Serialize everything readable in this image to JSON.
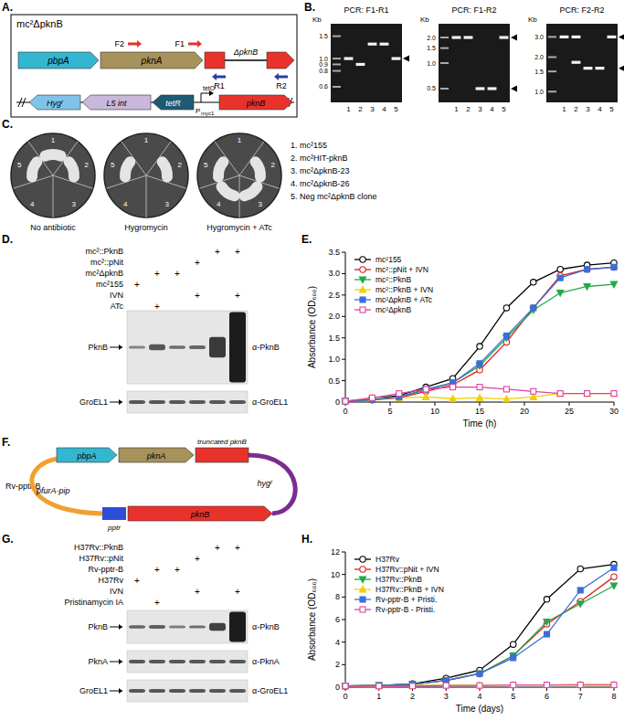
{
  "panel_labels": [
    "A.",
    "B.",
    "C.",
    "D.",
    "E.",
    "F.",
    "G.",
    "H."
  ],
  "panel_a": {
    "title": "mc²ΔpknB",
    "row1": [
      "pbpA",
      "pknA",
      "ΔpknB"
    ],
    "primers": [
      "F2",
      "F1",
      "R1",
      "R2"
    ],
    "row2": [
      "Hygʳ",
      "L5 int",
      "tetR",
      "pknB"
    ],
    "promoter": "P",
    "promoter_sub": "myc1",
    "operator": "tetO"
  },
  "panel_b": {
    "unit": "Kb",
    "lanes": [
      "1",
      "2",
      "3",
      "4",
      "5"
    ],
    "gels": [
      {
        "title": "PCR: F1-R1",
        "kb_range": [
          1.7,
          0.5
        ],
        "ladder": [
          1.5,
          {
            "value": 1,
            "label": "1.0"
          },
          0.9,
          0.8,
          0.6
        ],
        "bands": [
          [
            1.0
          ],
          [
            0.9
          ],
          [
            1.3
          ],
          [
            1.3
          ],
          [
            1.0
          ]
        ],
        "arrows": [
          1.0
        ]
      },
      {
        "title": "PCR: F1-R2",
        "kb_range": [
          2.5,
          0.4
        ],
        "ladder": [
          {
            "value": 2,
            "label": "2.0"
          },
          1.5,
          {
            "value": 1,
            "label": "1.0"
          },
          0.5
        ],
        "bands": [
          [
            2.0
          ],
          [
            2.0
          ],
          [
            0.5
          ],
          [
            0.5
          ],
          [
            2.0
          ]
        ],
        "arrows": [
          2.0,
          0.5
        ]
      },
      {
        "title": "PCR: F2-R2",
        "kb_range": [
          3.5,
          0.9
        ],
        "ladder": [
          {
            "value": 3,
            "label": "3.0"
          },
          {
            "value": 2,
            "label": "2.0"
          },
          1.5,
          {
            "value": 1,
            "label": "1.0"
          }
        ],
        "bands": [
          [
            3.0
          ],
          [
            3.0,
            1.8
          ],
          [
            1.6
          ],
          [
            1.6
          ],
          [
            3.0
          ]
        ],
        "arrows": [
          3.0,
          1.6
        ]
      }
    ]
  },
  "panel_c": {
    "sector_numbers": [
      "1",
      "2",
      "3",
      "4",
      "5"
    ],
    "plates": [
      {
        "label": "No antibiotic",
        "growth": [
          true,
          true,
          false,
          false,
          true
        ]
      },
      {
        "label": "Hygromycin",
        "growth": [
          false,
          true,
          false,
          false,
          true
        ]
      },
      {
        "label": "Hygromycin + ATc",
        "growth": [
          false,
          true,
          true,
          true,
          true
        ]
      }
    ],
    "strains": [
      "1. mc²155",
      "2. mc²HIT-pknB",
      "3. mc²ΔpknB-23",
      "4. mc²ΔpknB-26",
      "5. Neg mc²ΔpknB clone"
    ]
  },
  "panel_d": {
    "plus": "+",
    "rows": [
      {
        "label": "mc²::PknB",
        "lanes": [
          0,
          0,
          0,
          0,
          1,
          1
        ]
      },
      {
        "label": "mc²::pNit",
        "lanes": [
          0,
          0,
          0,
          1,
          0,
          0
        ]
      },
      {
        "label": "mc²ΔpknB",
        "lanes": [
          0,
          1,
          1,
          0,
          0,
          0
        ]
      },
      {
        "label": "mc²155",
        "lanes": [
          1,
          0,
          0,
          0,
          0,
          0
        ]
      },
      {
        "label": "IVN",
        "lanes": [
          0,
          0,
          0,
          1,
          0,
          1
        ]
      },
      {
        "label": "ATc",
        "lanes": [
          0,
          1,
          0,
          0,
          0,
          0
        ]
      }
    ],
    "blots": [
      {
        "band": "PknB",
        "antibody": "α-PknB",
        "intensity": [
          0.3,
          0.6,
          0.45,
          0.5,
          0.8,
          1.0
        ]
      },
      {
        "band": "GroEL1",
        "antibody": "α-GroEL1",
        "intensity": [
          0.6,
          0.6,
          0.6,
          0.6,
          0.6,
          0.6
        ]
      }
    ]
  },
  "panel_f": {
    "name": "Rv-pptr-B",
    "genes": [
      "pbpA",
      "pknA",
      "truncated pknB",
      "hygʳ",
      "pfurA-pip",
      "pptr",
      "pknB"
    ]
  },
  "panel_g": {
    "plus": "+",
    "rows": [
      {
        "label": "H37Rv::PknB",
        "lanes": [
          0,
          0,
          0,
          0,
          1,
          1
        ]
      },
      {
        "label": "H37Rv::pNit",
        "lanes": [
          0,
          0,
          0,
          1,
          0,
          0
        ]
      },
      {
        "label": "Rv-pptr-B",
        "lanes": [
          0,
          1,
          1,
          0,
          0,
          0
        ]
      },
      {
        "label": "H37Rv",
        "lanes": [
          1,
          0,
          0,
          0,
          0,
          0
        ]
      },
      {
        "label": "IVN",
        "lanes": [
          0,
          0,
          0,
          1,
          0,
          1
        ]
      },
      {
        "label": "Pristinamycin IA",
        "lanes": [
          0,
          1,
          0,
          0,
          0,
          0
        ]
      }
    ],
    "blots": [
      {
        "band": "PknB",
        "antibody": "α-PknB",
        "intensity": [
          0.5,
          0.55,
          0.35,
          0.45,
          0.75,
          1.0
        ]
      },
      {
        "band": "PknA",
        "antibody": "α-PknA",
        "intensity": [
          0.6,
          0.6,
          0.6,
          0.6,
          0.6,
          0.6
        ]
      },
      {
        "band": "GroEL1",
        "antibody": "α-GroEL1",
        "intensity": [
          0.6,
          0.6,
          0.6,
          0.6,
          0.6,
          0.6
        ]
      }
    ]
  },
  "chart_data": [
    {
      "type": "line",
      "xlabel": "Time (h)",
      "ylabel": "Absorbance (OD₆₀₀)",
      "x": [
        0,
        3,
        6,
        9,
        12,
        15,
        18,
        21,
        24,
        27,
        30
      ],
      "xlim": [
        0,
        30
      ],
      "ylim": [
        0,
        3.5
      ],
      "xticks": [
        0,
        5,
        10,
        15,
        20,
        25,
        30
      ],
      "yticks": [
        0,
        0.5,
        {
          "value": 1,
          "label": "1.0"
        },
        1.5,
        {
          "value": 2,
          "label": "2.0"
        },
        2.5,
        {
          "value": 3,
          "label": "3.0"
        },
        3.5
      ],
      "grid": false,
      "legend": "upper left",
      "series": [
        {
          "name": "mc²155",
          "color": "#000000",
          "marker": "circle-open",
          "values": [
            0.02,
            0.08,
            0.15,
            0.35,
            0.55,
            1.3,
            2.2,
            2.8,
            3.1,
            3.2,
            3.25
          ]
        },
        {
          "name": "mc²::pNit  + IVN",
          "color": "#e31a1c",
          "marker": "circle-open",
          "values": [
            0.02,
            0.05,
            0.1,
            0.25,
            0.4,
            0.75,
            1.4,
            2.2,
            2.95,
            3.1,
            3.15
          ]
        },
        {
          "name": "mc²::PknB",
          "color": "#22a84a",
          "marker": "triangle-down",
          "values": [
            0.02,
            0.05,
            0.12,
            0.28,
            0.45,
            0.85,
            1.5,
            2.15,
            2.55,
            2.7,
            2.75
          ]
        },
        {
          "name": "mc²::PknB + IVN",
          "color": "#f2cf00",
          "marker": "triangle-up",
          "values": [
            0.02,
            0.1,
            0.1,
            0.12,
            0.08,
            0.1,
            0.07,
            0.12,
            0.2,
            0.2,
            0.2
          ]
        },
        {
          "name": "mc²ΔpknB + ATc",
          "color": "#3a6fd8",
          "marker": "square",
          "values": [
            0.02,
            0.06,
            0.12,
            0.3,
            0.45,
            0.9,
            1.55,
            2.2,
            2.9,
            3.1,
            3.15
          ]
        },
        {
          "name": "mc²ΔpknB",
          "color": "#e040a0",
          "marker": "square-open",
          "values": [
            0.02,
            0.1,
            0.2,
            0.3,
            0.35,
            0.35,
            0.3,
            0.25,
            0.2,
            0.2,
            0.2
          ]
        }
      ]
    },
    {
      "type": "line",
      "xlabel": "Time (days)",
      "ylabel": "Absorbance (OD₆₀₀)",
      "x": [
        0,
        1,
        2,
        3,
        4,
        5,
        6,
        7,
        8
      ],
      "xlim": [
        0,
        8
      ],
      "ylim": [
        0,
        12
      ],
      "xticks": [
        0,
        1,
        2,
        3,
        4,
        5,
        6,
        7,
        8
      ],
      "yticks": [
        0,
        2,
        4,
        6,
        8,
        10,
        12
      ],
      "grid": false,
      "legend": "upper left",
      "series": [
        {
          "name": "H37Rv",
          "color": "#000000",
          "marker": "circle-open",
          "values": [
            0.1,
            0.15,
            0.3,
            0.8,
            1.5,
            3.8,
            7.8,
            10.5,
            10.9
          ]
        },
        {
          "name": "H37Rv::pNit + IVN",
          "color": "#e31a1c",
          "marker": "circle-open",
          "values": [
            0.1,
            0.15,
            0.25,
            0.6,
            1.2,
            2.8,
            5.6,
            7.6,
            9.8
          ]
        },
        {
          "name": "H37Rv::PknB",
          "color": "#22a84a",
          "marker": "triangle-down",
          "values": [
            0.1,
            0.15,
            0.25,
            0.6,
            1.2,
            2.8,
            5.8,
            7.4,
            9.0
          ]
        },
        {
          "name": "H37Rv::PknB + IVN",
          "color": "#f2cf00",
          "marker": "triangle-up",
          "values": [
            0.1,
            0.1,
            0.15,
            0.2,
            0.2,
            0.2,
            0.2,
            0.25,
            0.25
          ]
        },
        {
          "name": "Rv-pptr-B + Pristi.",
          "color": "#3a6fd8",
          "marker": "square",
          "values": [
            0.1,
            0.15,
            0.25,
            0.6,
            1.2,
            2.6,
            4.7,
            8.6,
            10.6
          ]
        },
        {
          "name": "Rv-pptr-B - Pristi.",
          "color": "#e040a0",
          "marker": "square-open",
          "values": [
            0.1,
            0.1,
            0.1,
            0.15,
            0.15,
            0.2,
            0.2,
            0.2,
            0.2
          ]
        }
      ]
    }
  ]
}
